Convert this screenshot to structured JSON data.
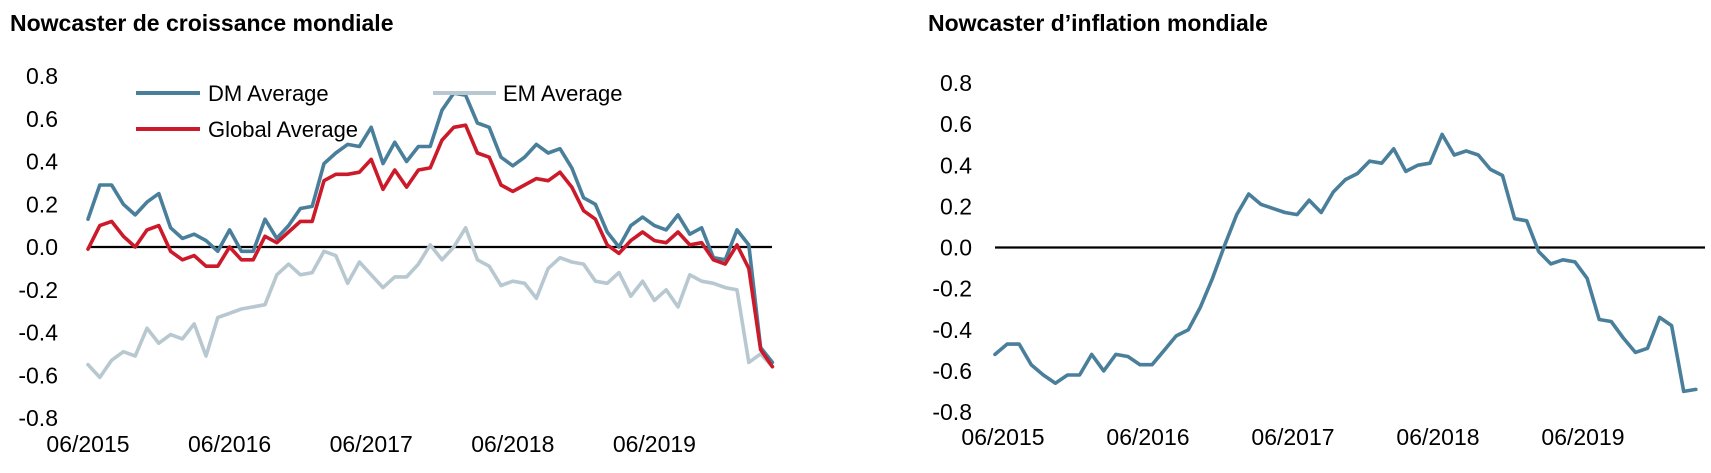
{
  "chart_data": [
    {
      "type": "line",
      "title": "Nowcaster de croissance mondiale",
      "xlabel": "",
      "ylabel": "",
      "ylim": [
        -0.8,
        0.8
      ],
      "yticks": [
        "0.8",
        "0.6",
        "0.4",
        "0.2",
        "0.0",
        "-0.2",
        "-0.4",
        "-0.6",
        "-0.8"
      ],
      "xticks": [
        "06/2015",
        "06/2016",
        "06/2017",
        "06/2018",
        "06/2019"
      ],
      "x_start": "06/2015",
      "zero_line": true,
      "legend": [
        "DM Average",
        "EM Average",
        "Global Average"
      ],
      "series": [
        {
          "name": "DM Average",
          "color": "#4a7f9b",
          "values": [
            0.13,
            0.29,
            0.29,
            0.2,
            0.15,
            0.21,
            0.25,
            0.09,
            0.04,
            0.06,
            0.03,
            -0.02,
            0.08,
            -0.02,
            -0.02,
            0.13,
            0.04,
            0.1,
            0.18,
            0.19,
            0.39,
            0.44,
            0.48,
            0.47,
            0.56,
            0.39,
            0.49,
            0.4,
            0.47,
            0.47,
            0.64,
            0.72,
            0.71,
            0.58,
            0.56,
            0.42,
            0.38,
            0.42,
            0.48,
            0.44,
            0.46,
            0.37,
            0.23,
            0.2,
            0.07,
            0.0,
            0.1,
            0.14,
            0.1,
            0.08,
            0.15,
            0.06,
            0.09,
            -0.05,
            -0.06,
            0.08,
            0.01,
            -0.47,
            -0.54
          ]
        },
        {
          "name": "EM Average",
          "color": "#b8c8d0",
          "values": [
            -0.55,
            -0.61,
            -0.53,
            -0.49,
            -0.51,
            -0.38,
            -0.45,
            -0.41,
            -0.43,
            -0.36,
            -0.51,
            -0.33,
            -0.31,
            -0.29,
            -0.28,
            -0.27,
            -0.13,
            -0.08,
            -0.13,
            -0.12,
            -0.02,
            -0.04,
            -0.17,
            -0.07,
            -0.13,
            -0.19,
            -0.14,
            -0.14,
            -0.08,
            0.01,
            -0.06,
            0.0,
            0.09,
            -0.06,
            -0.09,
            -0.18,
            -0.16,
            -0.17,
            -0.24,
            -0.1,
            -0.05,
            -0.07,
            -0.08,
            -0.16,
            -0.17,
            -0.12,
            -0.23,
            -0.16,
            -0.25,
            -0.2,
            -0.28,
            -0.13,
            -0.16,
            -0.17,
            -0.19,
            -0.2,
            -0.54,
            -0.5,
            -0.56
          ]
        },
        {
          "name": "Global Average",
          "color": "#cc1a2b",
          "values": [
            -0.01,
            0.1,
            0.12,
            0.05,
            0.0,
            0.08,
            0.1,
            -0.02,
            -0.06,
            -0.04,
            -0.09,
            -0.09,
            0.0,
            -0.06,
            -0.06,
            0.05,
            0.02,
            0.07,
            0.12,
            0.12,
            0.31,
            0.34,
            0.34,
            0.35,
            0.41,
            0.27,
            0.36,
            0.28,
            0.36,
            0.37,
            0.5,
            0.56,
            0.57,
            0.44,
            0.42,
            0.29,
            0.26,
            0.29,
            0.32,
            0.31,
            0.35,
            0.28,
            0.17,
            0.13,
            0.01,
            -0.03,
            0.03,
            0.07,
            0.03,
            0.02,
            0.07,
            0.01,
            0.02,
            -0.06,
            -0.08,
            0.01,
            -0.1,
            -0.48,
            -0.56
          ]
        }
      ]
    },
    {
      "type": "line",
      "title": "Nowcaster d’inflation mondiale",
      "xlabel": "",
      "ylabel": "",
      "ylim": [
        -0.8,
        0.8
      ],
      "yticks": [
        "0.8",
        "0.6",
        "0.4",
        "0.2",
        "0.0",
        "-0.2",
        "-0.4",
        "-0.6",
        "-0.8"
      ],
      "xticks": [
        "06/2015",
        "06/2016",
        "06/2017",
        "06/2018",
        "06/2019"
      ],
      "x_start": "06/2015",
      "zero_line": true,
      "legend": [],
      "series": [
        {
          "color": "#4a7f9b",
          "values": [
            -0.52,
            -0.47,
            -0.47,
            -0.57,
            -0.62,
            -0.66,
            -0.62,
            -0.62,
            -0.52,
            -0.6,
            -0.52,
            -0.53,
            -0.57,
            -0.57,
            -0.5,
            -0.43,
            -0.4,
            -0.29,
            -0.15,
            0.01,
            0.16,
            0.26,
            0.21,
            0.19,
            0.17,
            0.16,
            0.23,
            0.17,
            0.27,
            0.33,
            0.36,
            0.42,
            0.41,
            0.48,
            0.37,
            0.4,
            0.41,
            0.55,
            0.45,
            0.47,
            0.45,
            0.38,
            0.35,
            0.14,
            0.13,
            -0.02,
            -0.08,
            -0.06,
            -0.07,
            -0.15,
            -0.35,
            -0.36,
            -0.44,
            -0.51,
            -0.49,
            -0.34,
            -0.38,
            -0.7,
            -0.69
          ]
        }
      ]
    }
  ]
}
